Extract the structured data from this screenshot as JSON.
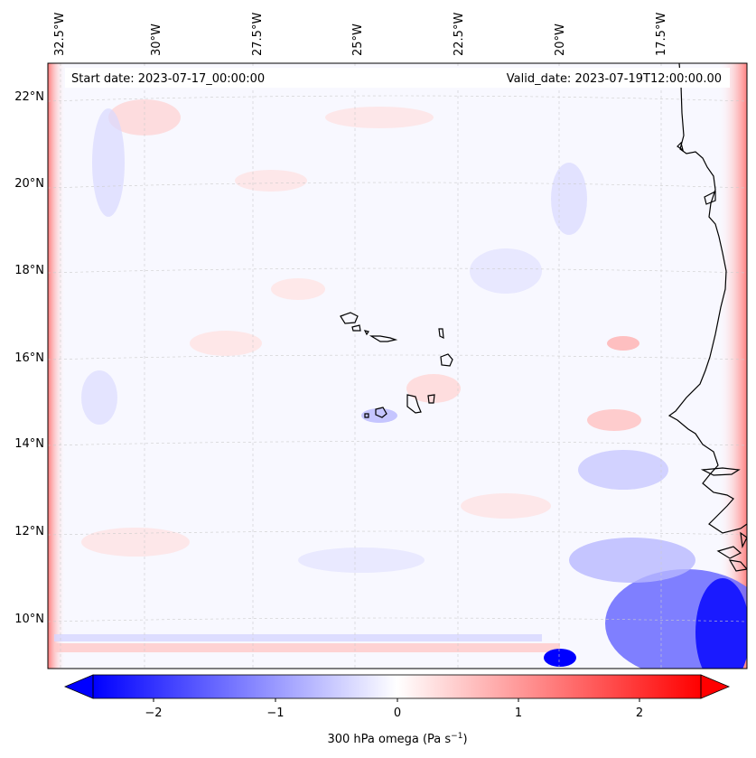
{
  "map": {
    "start_date_label": "Start date: 2023-07-17_00:00:00",
    "valid_date_label": "Valid_date: 2023-07-19T12:00:00.00",
    "lon_labels": [
      "32.5°W",
      "30°W",
      "27.5°W",
      "25°W",
      "22.5°W",
      "20°W",
      "17.5°W"
    ],
    "lat_labels": [
      "22°N",
      "20°N",
      "18°N",
      "16°N",
      "14°N",
      "12°N",
      "10°N"
    ],
    "colors": {
      "negative": "#0000ff",
      "zero": "#ffffff",
      "positive": "#ff0000",
      "coastline": "#000000"
    }
  },
  "colorbar": {
    "label": "300 hPa omega (Pa s",
    "label_sup": "−1",
    "label_end": ")",
    "tick_labels": [
      "−2",
      "−1",
      "0",
      "1",
      "2"
    ],
    "tick_values": [
      -2,
      -1,
      0,
      1,
      2
    ],
    "range": [
      -2.5,
      2.5
    ],
    "extend": "both"
  }
}
